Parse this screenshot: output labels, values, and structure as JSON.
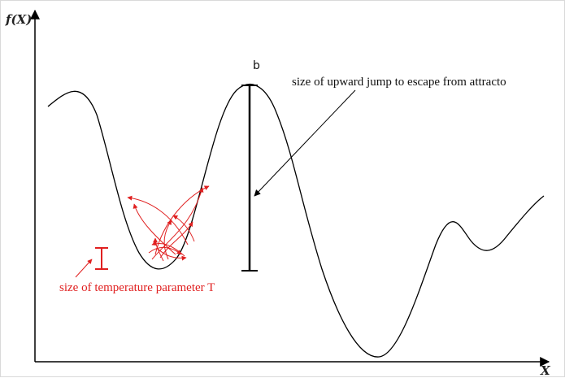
{
  "axes": {
    "y_label": "f(X)",
    "x_label": "X"
  },
  "annotations": {
    "barrier_point": "b",
    "upward_jump": "size of upward jump to escape from attracto",
    "temperature": "size of temperature parameter T"
  },
  "colors": {
    "curve": "#000000",
    "temperature_marks": "#e02020"
  }
}
